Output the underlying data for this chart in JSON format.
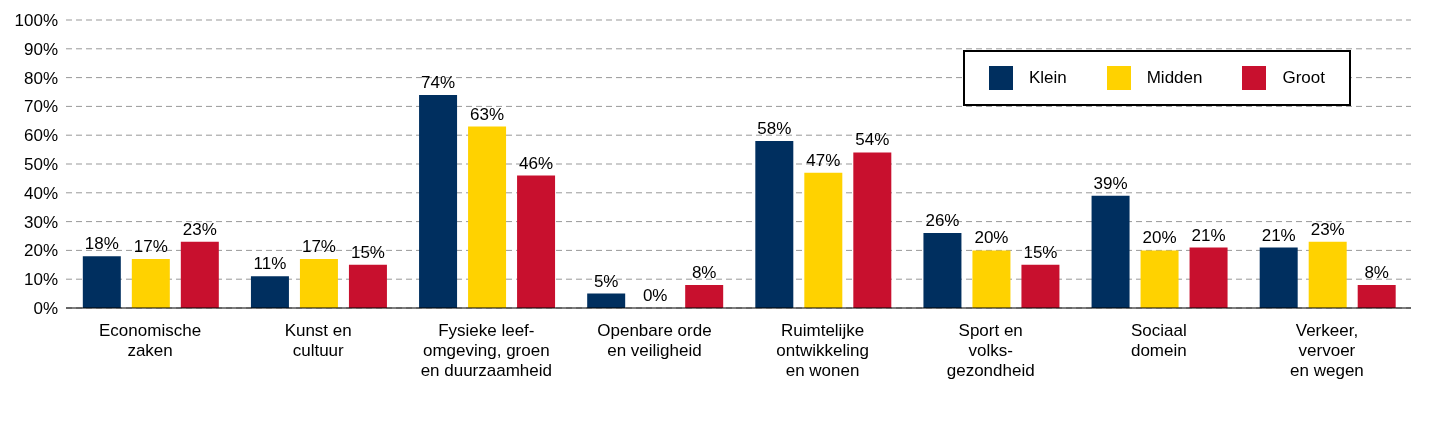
{
  "chart_data": {
    "type": "bar",
    "categories": [
      "Economische\nzaken",
      "Kunst en\ncultuur",
      "Fysieke leef-\nomgeving, groen\nen duurzaamheid",
      "Openbare orde\nen veiligheid",
      "Ruimtelijke\nontwikkeling\nen wonen",
      "Sport en\nvolks-\ngezondheid",
      "Sociaal\ndomein",
      "Verkeer,\nvervoer\nen wegen"
    ],
    "series": [
      {
        "name": "Klein",
        "color": "#002f5f",
        "values": [
          18,
          11,
          74,
          5,
          58,
          26,
          39,
          21
        ],
        "value_labels": [
          "18%",
          "11%",
          "74%",
          "5%",
          "58%",
          "26%",
          "39%",
          "21%"
        ]
      },
      {
        "name": "Midden",
        "color": "#ffd200",
        "values": [
          17,
          17,
          63,
          0,
          47,
          20,
          20,
          23
        ],
        "value_labels": [
          "17%",
          "17%",
          "63%",
          "0%",
          "47%",
          "20%",
          "20%",
          "23%"
        ]
      },
      {
        "name": "Groot",
        "color": "#c8102e",
        "values": [
          23,
          15,
          46,
          8,
          54,
          15,
          21,
          8
        ],
        "value_labels": [
          "23%",
          "15%",
          "46%",
          "8%",
          "54%",
          "15%",
          "21%",
          "8%"
        ]
      }
    ],
    "ylim": [
      0,
      100
    ],
    "yticks": [
      {
        "value": 0,
        "label": "0%"
      },
      {
        "value": 10,
        "label": "10%"
      },
      {
        "value": 20,
        "label": "20%"
      },
      {
        "value": 30,
        "label": "30%"
      },
      {
        "value": 40,
        "label": "40%"
      },
      {
        "value": 50,
        "label": "50%"
      },
      {
        "value": 60,
        "label": "60%"
      },
      {
        "value": 70,
        "label": "70%"
      },
      {
        "value": 80,
        "label": "80%"
      },
      {
        "value": 90,
        "label": "90%"
      },
      {
        "value": 100,
        "label": "100%"
      }
    ],
    "grid": "y",
    "legend": "top right"
  }
}
